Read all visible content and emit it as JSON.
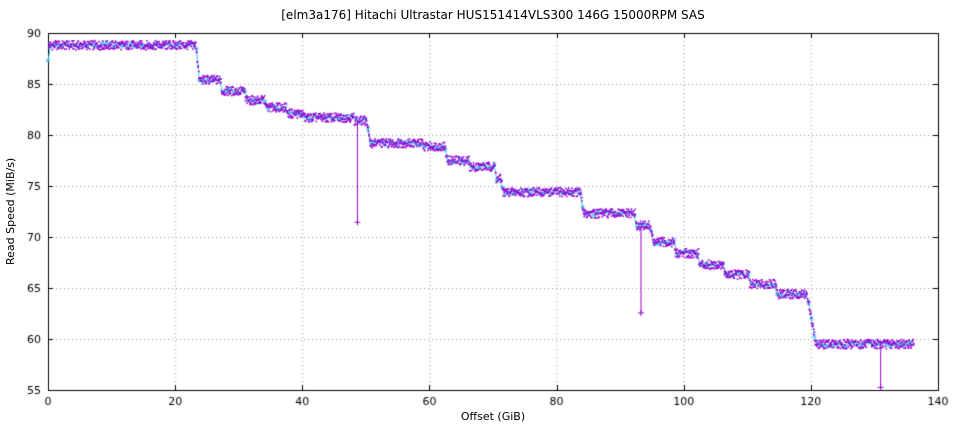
{
  "chart_data": {
    "type": "line",
    "title": "[elm3a176] Hitachi Ultrastar HUS151414VLS300 146G 15000RPM SAS",
    "xlabel": "Offset (GiB)",
    "ylabel": "Read Speed (MiB/s)",
    "xlim": [
      0,
      140
    ],
    "ylim": [
      55,
      90
    ],
    "xticks": [
      0,
      20,
      40,
      60,
      80,
      100,
      120,
      140
    ],
    "yticks": [
      55,
      60,
      65,
      70,
      75,
      80,
      85,
      90
    ],
    "grid": "dotted",
    "legend": "none",
    "colors": {
      "band": "#9400d3",
      "line": "#2fc2e6",
      "grid": "#9a9a9a",
      "frame": "#000000"
    },
    "series": [
      {
        "name": "read-speed-points",
        "style": "scatter-band",
        "color": "#9400d3"
      },
      {
        "name": "read-speed-line",
        "style": "line-with-star-markers",
        "color": "#2fc2e6"
      }
    ],
    "first_point": [
      0,
      87.3
    ],
    "steps": [
      [
        0,
        23.3,
        88.8
      ],
      [
        23.8,
        27.3,
        85.4
      ],
      [
        27.3,
        31.0,
        84.3
      ],
      [
        31.0,
        34.3,
        83.4
      ],
      [
        34.3,
        37.6,
        82.7
      ],
      [
        37.6,
        40.2,
        82.1
      ],
      [
        40.2,
        48.2,
        81.7
      ],
      [
        48.2,
        50.2,
        81.4
      ],
      [
        50.6,
        59.0,
        79.2
      ],
      [
        59.0,
        62.4,
        78.9
      ],
      [
        62.8,
        66.3,
        77.5
      ],
      [
        66.3,
        70.3,
        76.9
      ],
      [
        70.5,
        71.3,
        75.7
      ],
      [
        71.6,
        83.8,
        74.4
      ],
      [
        84.2,
        92.4,
        72.3
      ],
      [
        92.4,
        94.8,
        71.1
      ],
      [
        95.2,
        98.6,
        69.5
      ],
      [
        98.6,
        102.4,
        68.4
      ],
      [
        102.4,
        106.4,
        67.3
      ],
      [
        106.4,
        110.3,
        66.3
      ],
      [
        110.3,
        114.6,
        65.4
      ],
      [
        114.6,
        119.4,
        64.4
      ],
      [
        120.8,
        136.3,
        59.5
      ]
    ],
    "spikes": [
      [
        48.6,
        71.5
      ],
      [
        93.2,
        62.6
      ],
      [
        130.9,
        55.3
      ]
    ],
    "x_end": 136.3
  }
}
